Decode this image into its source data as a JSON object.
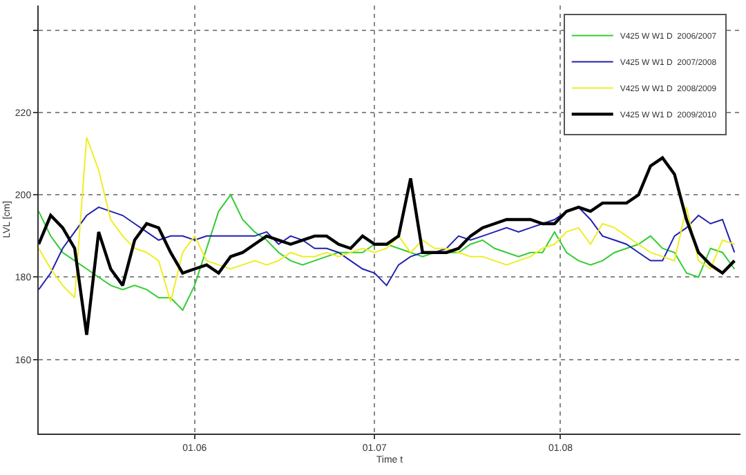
{
  "chart_data": {
    "type": "line",
    "xlabel": "Time t",
    "ylabel": "LVL [cm]",
    "x": [
      "--05-06",
      "--05-08",
      "--05-10",
      "--05-12",
      "--05-14",
      "--05-16",
      "--05-18",
      "--05-20",
      "--05-22",
      "--05-24",
      "--05-26",
      "--05-28",
      "--05-30",
      "--06-01",
      "--06-03",
      "--06-05",
      "--06-07",
      "--06-09",
      "--06-11",
      "--06-13",
      "--06-15",
      "--06-17",
      "--06-19",
      "--06-21",
      "--06-23",
      "--06-25",
      "--06-27",
      "--06-29",
      "--07-01",
      "--07-03",
      "--07-05",
      "--07-07",
      "--07-09",
      "--07-11",
      "--07-13",
      "--07-15",
      "--07-17",
      "--07-19",
      "--07-21",
      "--07-23",
      "--07-25",
      "--07-27",
      "--07-29",
      "--07-31",
      "--08-02",
      "--08-04",
      "--08-06",
      "--08-08",
      "--08-10",
      "--08-12",
      "--08-14",
      "--08-16",
      "--08-18",
      "--08-20",
      "--08-22",
      "--08-24",
      "--08-26",
      "--08-28",
      "--08-30"
    ],
    "series": [
      {
        "name": "V425 W W1 D  2006/2007",
        "color": "#33cc33",
        "values": [
          196,
          190,
          186,
          184,
          182,
          180,
          178,
          177,
          178,
          177,
          175,
          175,
          172,
          178,
          187,
          196,
          200,
          194,
          191,
          189,
          186,
          184,
          183,
          184,
          185,
          186,
          186,
          186,
          188,
          188,
          187,
          186,
          185,
          186,
          186,
          186,
          188,
          189,
          187,
          186,
          185,
          186,
          186,
          191,
          186,
          184,
          183,
          184,
          186,
          187,
          188,
          190,
          187,
          186,
          181,
          180,
          187,
          186,
          182
        ]
      },
      {
        "name": "V425 W W1 D  2007/2008",
        "color": "#2020b0",
        "values": [
          177,
          181,
          187,
          191,
          195,
          197,
          196,
          195,
          193,
          191,
          189,
          190,
          190,
          189,
          190,
          190,
          190,
          190,
          190,
          191,
          188,
          190,
          189,
          187,
          187,
          186,
          184,
          182,
          181,
          178,
          183,
          185,
          186,
          186,
          187,
          190,
          189,
          190,
          191,
          192,
          191,
          192,
          193,
          194,
          196,
          197,
          194,
          190,
          189,
          188,
          186,
          184,
          184,
          190,
          192,
          195,
          193,
          194,
          186
        ]
      },
      {
        "name": "V425 W W1 D  2008/2009",
        "color": "#eeee22",
        "values": [
          187,
          182,
          178,
          175,
          214,
          206,
          194,
          190,
          187,
          186,
          184,
          174,
          186,
          190,
          184,
          183,
          182,
          183,
          184,
          183,
          184,
          186,
          185,
          185,
          186,
          185,
          186,
          187,
          186,
          187,
          190,
          186,
          189,
          187,
          187,
          186,
          185,
          185,
          184,
          183,
          184,
          185,
          187,
          188,
          191,
          192,
          188,
          193,
          192,
          190,
          188,
          186,
          185,
          184,
          197,
          184,
          182,
          189,
          188
        ]
      },
      {
        "name": "V425 W W1 D  2009/2010",
        "color": "#000000",
        "values": [
          188,
          195,
          192,
          187,
          166,
          191,
          182,
          178,
          189,
          193,
          192,
          186,
          181,
          182,
          183,
          181,
          185,
          186,
          188,
          190,
          189,
          188,
          189,
          190,
          190,
          188,
          187,
          190,
          188,
          188,
          190,
          204,
          186,
          186,
          186,
          187,
          190,
          192,
          193,
          194,
          194,
          194,
          193,
          193,
          196,
          197,
          196,
          198,
          198,
          198,
          200,
          207,
          209,
          205,
          194,
          186,
          183,
          181,
          184
        ]
      }
    ],
    "xlim": [
      "--05-06",
      "--08-31"
    ],
    "xticks": [
      {
        "value": "--06-01",
        "label": "01.06"
      },
      {
        "value": "--07-01",
        "label": "01.07"
      },
      {
        "value": "--08-01",
        "label": "01.08"
      }
    ],
    "ylim": [
      142,
      246
    ],
    "yticks": [
      160,
      180,
      200,
      220,
      {
        "value": 240,
        "label": null
      }
    ],
    "grid": true,
    "legend": "top right",
    "line_style": "solid",
    "marker": "none"
  }
}
